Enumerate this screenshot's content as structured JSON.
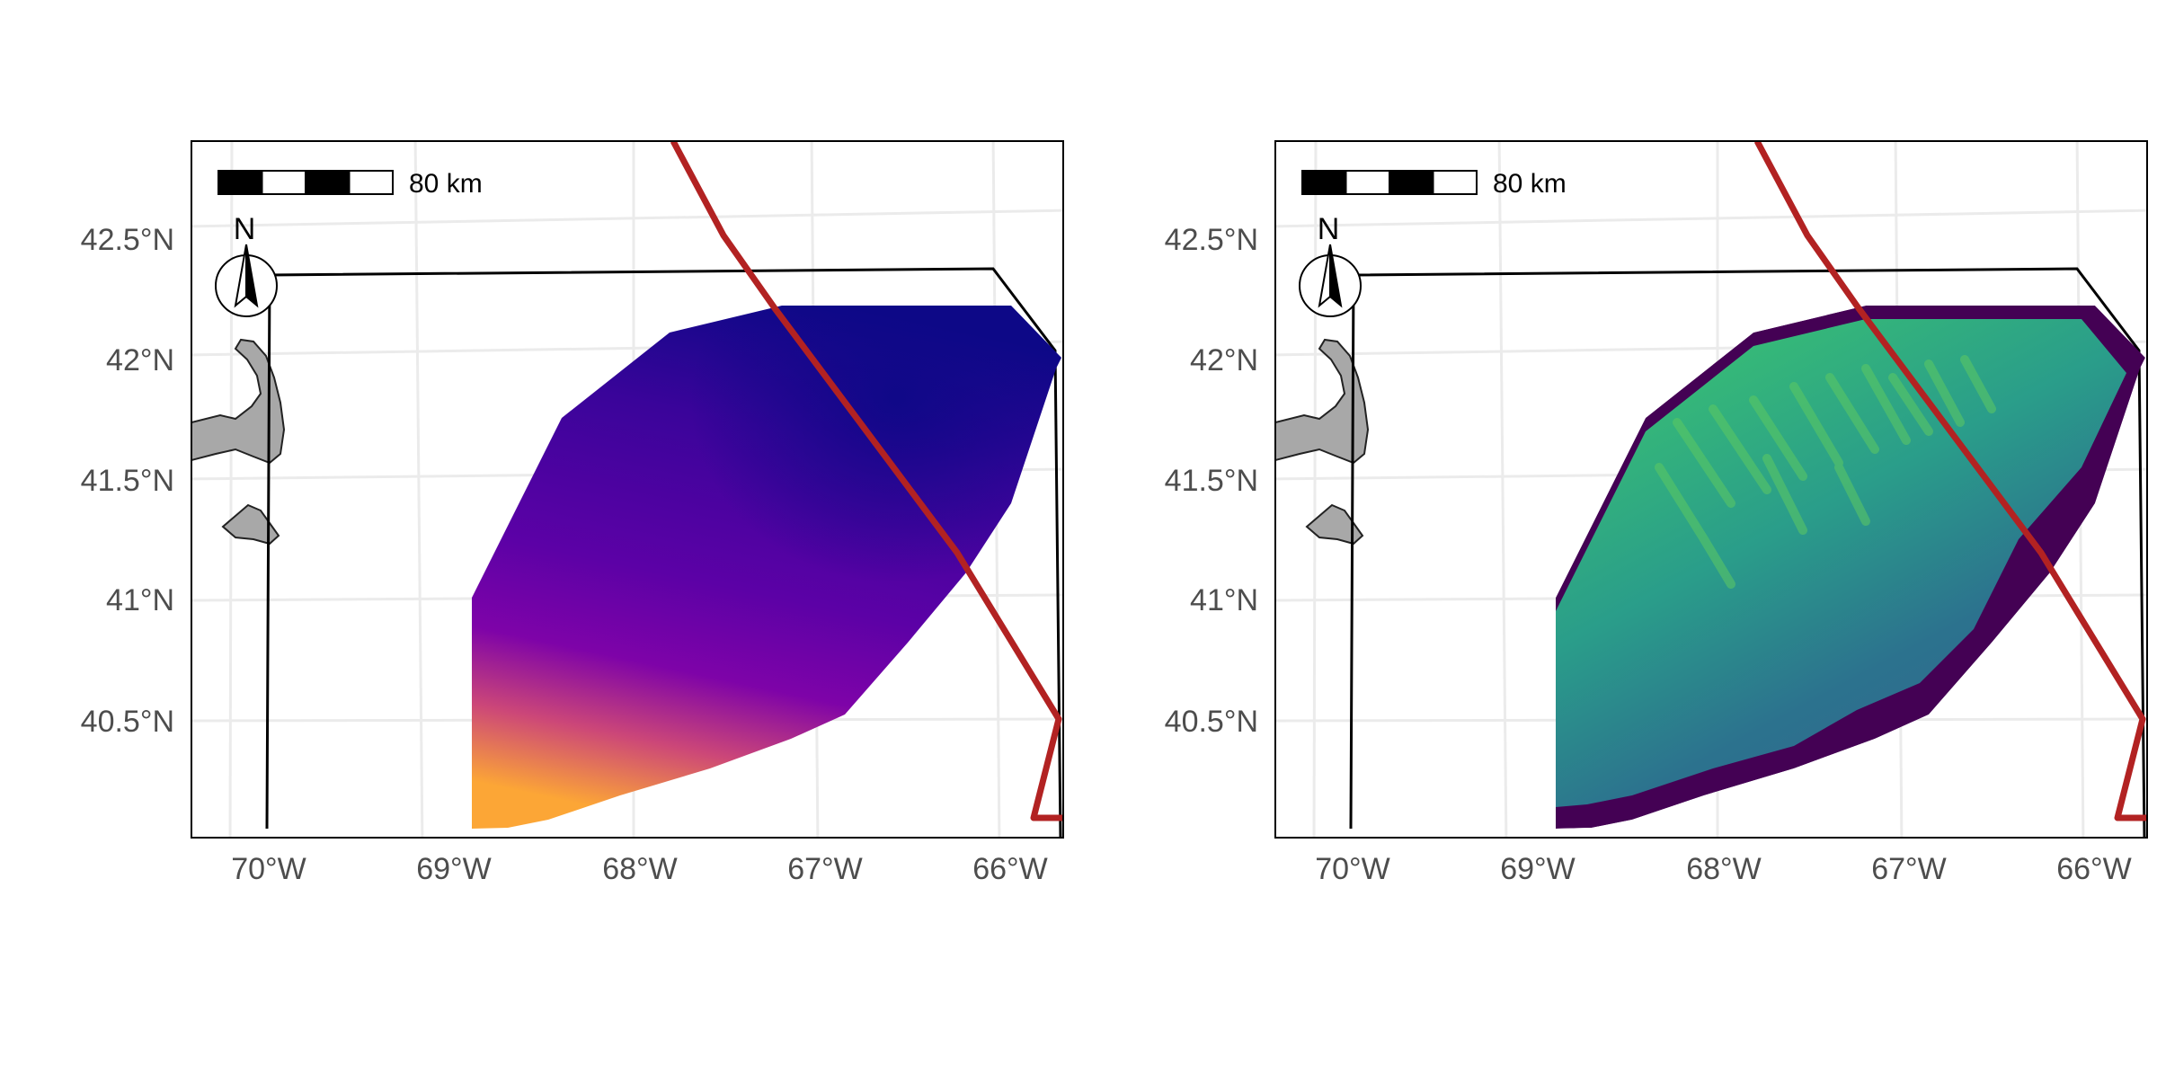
{
  "figure": {
    "panels": [
      {
        "id": "left",
        "fill_style": "smooth-plasma",
        "colors": {
          "low": "#0d0887",
          "mid": "#7e03a8",
          "high": "#fca636"
        }
      },
      {
        "id": "right",
        "fill_style": "textured-viridis",
        "colors": {
          "dark": "#440154",
          "mid": "#2c728e",
          "bright": "#5ec962"
        }
      }
    ],
    "axes": {
      "x_ticks": [
        "70°W",
        "69°W",
        "68°W",
        "67°W",
        "66°W"
      ],
      "y_ticks": [
        "42.5°N",
        "42°N",
        "41.5°N",
        "41°N",
        "40.5°N"
      ]
    },
    "scale_bar": {
      "label": "80 km"
    },
    "north_arrow": {
      "label": "N"
    },
    "colors": {
      "boundary_line": "#b22222",
      "region_outline": "#000000",
      "land": "#a8a8a8",
      "graticule": "#ebebeb",
      "panel_border": "#000000"
    }
  }
}
